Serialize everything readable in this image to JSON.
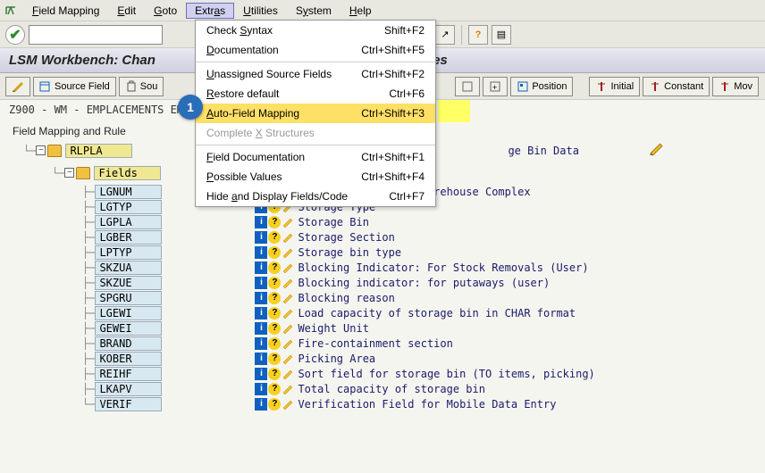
{
  "menubar": {
    "items": [
      "Field Mapping",
      "Edit",
      "Goto",
      "Extras",
      "Utilities",
      "System",
      "Help"
    ],
    "active_index": 3
  },
  "dropdown": {
    "items": [
      {
        "label": "Check Syntax",
        "shortcut": "Shift+F2"
      },
      {
        "label": "Documentation",
        "shortcut": "Ctrl+Shift+F5"
      },
      {
        "sep": true
      },
      {
        "label": "Unassigned Source Fields",
        "shortcut": "Ctrl+Shift+F2"
      },
      {
        "label": "Restore default",
        "shortcut": "Ctrl+F6"
      },
      {
        "label": "Auto-Field Mapping",
        "shortcut": "Ctrl+Shift+F3",
        "highlighted": true
      },
      {
        "label": "Complete X Structures",
        "shortcut": "",
        "disabled": true
      },
      {
        "sep": true
      },
      {
        "label": "Field Documentation",
        "shortcut": "Ctrl+Shift+F1"
      },
      {
        "label": "Possible Values",
        "shortcut": "Ctrl+Shift+F4"
      },
      {
        "label": "Hide and Display Fields/Code",
        "shortcut": "Ctrl+F7"
      }
    ]
  },
  "title": "LSM Workbench: Change Field Mapping and Conversion Rules",
  "title_visible_left": "LSM Workbench: Chan",
  "title_visible_right": "Rules",
  "toolbar2": {
    "source_field": "Source Field",
    "sou_trunc": "Sou",
    "position": "Position",
    "initial": "Initial",
    "constant": "Constant",
    "mov": "Mov"
  },
  "status_line": "Z900 - WM - EMPLACEMENTS EMP",
  "tree": {
    "root_label": "Field Mapping and Rule",
    "struct": "RLPLA",
    "struct_desc": "ge Bin Data",
    "fields_label": "Fields",
    "fields": [
      {
        "name": "LGNUM",
        "desc": "Warehouse Number / Warehouse Complex"
      },
      {
        "name": "LGTYP",
        "desc": "Storage Type"
      },
      {
        "name": "LGPLA",
        "desc": "Storage Bin"
      },
      {
        "name": "LGBER",
        "desc": "Storage Section"
      },
      {
        "name": "LPTYP",
        "desc": "Storage bin type"
      },
      {
        "name": "SKZUA",
        "desc": "Blocking Indicator: For Stock Removals (User)"
      },
      {
        "name": "SKZUE",
        "desc": "Blocking indicator: for putaways (user)"
      },
      {
        "name": "SPGRU",
        "desc": "Blocking reason"
      },
      {
        "name": "LGEWI",
        "desc": "Load capacity of storage bin in CHAR format"
      },
      {
        "name": "GEWEI",
        "desc": "Weight Unit"
      },
      {
        "name": "BRAND",
        "desc": "Fire-containment section"
      },
      {
        "name": "KOBER",
        "desc": "Picking Area"
      },
      {
        "name": "REIHF",
        "desc": "Sort field for storage bin (TO items, picking)"
      },
      {
        "name": "LKAPV",
        "desc": "Total capacity of storage bin"
      },
      {
        "name": "VERIF",
        "desc": "Verification Field for Mobile Data Entry"
      }
    ]
  },
  "marker": {
    "number": "1"
  },
  "colors": {
    "highlight": "#ffe066",
    "marker": "#2a6db8"
  }
}
